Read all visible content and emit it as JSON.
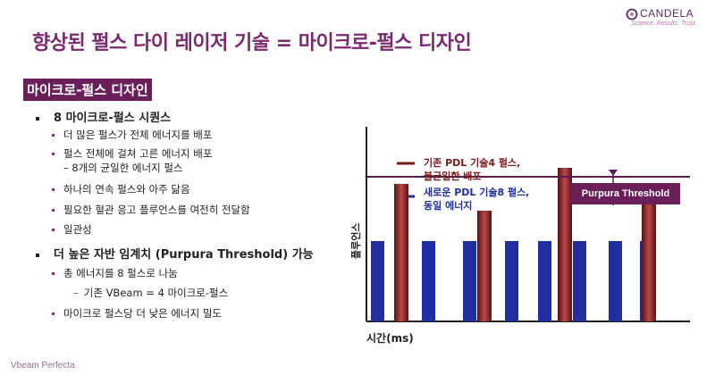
{
  "title": "향상된 펄스 다이 레이저 기술 = 마이크로-펄스 디자인",
  "logo": {
    "name": "CANDELA",
    "tagline": "Science. Results. Trust."
  },
  "section_title": "마이크로-펄스 디자인",
  "bullets": [
    {
      "text": "8 마이크로-펄스 시퀀스",
      "sub": [
        "더 많은 펄스가 전체 에너지를 배포",
        "펄스 전체에 걸쳐 고른 에너지 배포",
        "– 8개의 균일한 에너지 펄스",
        "하나의 연속 펄스와 아주 닮음",
        "필요한 혈관 응고 플루언스를 여전히 전달함",
        "일관성"
      ]
    },
    {
      "text": "더 높은 자반 임계치 (Purpura Threshold) 가능",
      "sub": [
        "총 에너지를 8 펄스로 나눔",
        "기존 VBeam = 4 마이크로-펄스",
        "마이크로 펄스당 더 낮은 에너지 밀도"
      ]
    }
  ],
  "footer": "Vbeam Perfecta",
  "chart_data": {
    "type": "bar",
    "xlabel": "시간(ms)",
    "ylabel": "플루언스",
    "threshold": {
      "label": "Purpura Threshold",
      "value": 0.81
    },
    "series": [
      {
        "name": "기존 PDL 기술4 펄스,\n불균일한 배포",
        "color": "#7a1a1a",
        "values": [
          0.77,
          0.62,
          0.86,
          0.74
        ]
      },
      {
        "name": "새로운 PDL 기술8 펄스,\n동일 에너지",
        "color": "#1f2fa0",
        "values": [
          0.45,
          0.45,
          0.45,
          0.45,
          0.45,
          0.45,
          0.45,
          0.45
        ]
      }
    ]
  }
}
